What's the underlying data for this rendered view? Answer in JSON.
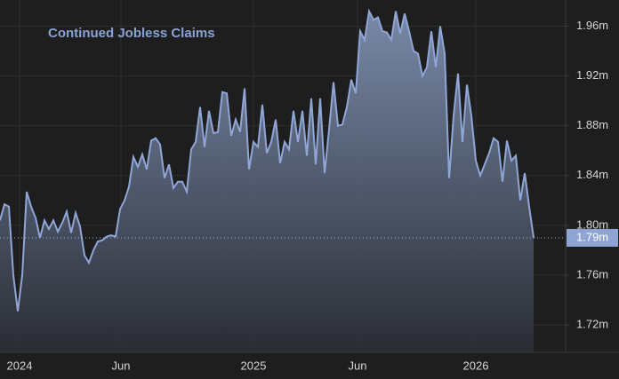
{
  "chart_data": {
    "type": "area",
    "title": "Continued Jobless Claims",
    "values": [
      1.804,
      1.817,
      1.815,
      1.76,
      1.731,
      1.76,
      1.827,
      1.815,
      1.806,
      1.79,
      1.804,
      1.797,
      1.804,
      1.795,
      1.802,
      1.811,
      1.794,
      1.81,
      1.799,
      1.776,
      1.77,
      1.78,
      1.787,
      1.788,
      1.791,
      1.792,
      1.791,
      1.813,
      1.82,
      1.831,
      1.855,
      1.847,
      1.857,
      1.845,
      1.868,
      1.87,
      1.865,
      1.838,
      1.849,
      1.83,
      1.835,
      1.835,
      1.827,
      1.861,
      1.867,
      1.895,
      1.863,
      1.892,
      1.874,
      1.875,
      1.907,
      1.906,
      1.872,
      1.885,
      1.875,
      1.91,
      1.845,
      1.867,
      1.863,
      1.897,
      1.858,
      1.867,
      1.885,
      1.85,
      1.867,
      1.861,
      1.892,
      1.867,
      1.892,
      1.856,
      1.902,
      1.849,
      1.902,
      1.842,
      1.877,
      1.915,
      1.88,
      1.881,
      1.895,
      1.917,
      1.906,
      1.956,
      1.949,
      1.972,
      1.965,
      1.967,
      1.956,
      1.955,
      1.949,
      1.972,
      1.954,
      1.97,
      1.956,
      1.94,
      1.938,
      1.92,
      1.927,
      1.956,
      1.927,
      1.96,
      1.938,
      1.838,
      1.888,
      1.922,
      1.867,
      1.913,
      1.888,
      1.852,
      1.84,
      1.849,
      1.858,
      1.87,
      1.867,
      1.835,
      1.868,
      1.852,
      1.856,
      1.82,
      1.842,
      1.815,
      1.79
    ],
    "color": "#8fa6d6",
    "last_value_label": "1.79m",
    "xlim": [
      0,
      127.2
    ],
    "xticks": [
      {
        "value": 4.4,
        "label": "2024"
      },
      {
        "value": 27.2,
        "label": "Jun"
      },
      {
        "value": 57,
        "label": "2025"
      },
      {
        "value": 80.4,
        "label": "Jun"
      },
      {
        "value": 107,
        "label": "2026"
      }
    ],
    "ylim": [
      1.698,
      1.981
    ],
    "yticks": [
      {
        "value": 1.72,
        "label": "1.72m"
      },
      {
        "value": 1.76,
        "label": "1.76m"
      },
      {
        "value": 1.8,
        "label": "1.80m"
      },
      {
        "value": 1.84,
        "label": "1.84m"
      },
      {
        "value": 1.88,
        "label": "1.88m"
      },
      {
        "value": 1.92,
        "label": "1.92m"
      },
      {
        "value": 1.96,
        "label": "1.96m"
      }
    ],
    "grid": true
  }
}
